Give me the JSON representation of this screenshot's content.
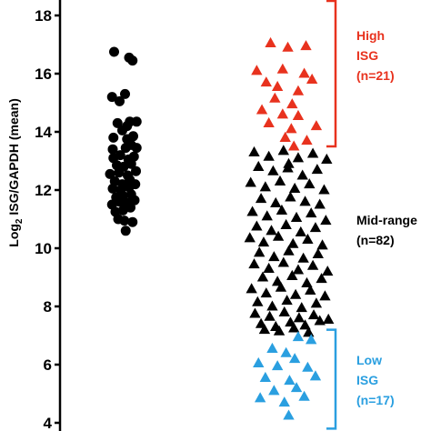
{
  "chart_data": {
    "type": "scatter",
    "ylabel_prefix": "Log",
    "ylabel_subscript": "2",
    "ylabel_suffix": " ISG/GAPDH (mean)",
    "yticks": [
      4,
      6,
      8,
      10,
      12,
      14,
      16,
      18
    ],
    "ylim": [
      3.8,
      18.5
    ],
    "grid": false,
    "series": [
      {
        "marker": "circle",
        "color": "#000000",
        "x": [
          0.14,
          0.36,
          0.41,
          0.3,
          0.11,
          0.22,
          0.37,
          0.19,
          0.33,
          0.47,
          0.26,
          0.13,
          0.33,
          0.42,
          0.12,
          0.31,
          0.39,
          0.47,
          0.13,
          0.23,
          0.35,
          0.43,
          0.18,
          0.28,
          0.39,
          0.08,
          0.21,
          0.34,
          0.46,
          0.15,
          0.26,
          0.37,
          0.12,
          0.24,
          0.36,
          0.45,
          0.17,
          0.27,
          0.39,
          0.11,
          0.22,
          0.33,
          0.44,
          0.16,
          0.27,
          0.38,
          0.2,
          0.29,
          0.41,
          0.31
        ],
        "y": [
          16.75,
          16.55,
          16.45,
          15.3,
          15.2,
          15.05,
          14.35,
          14.3,
          14.2,
          14.35,
          14.05,
          13.8,
          13.75,
          13.85,
          13.4,
          13.45,
          13.55,
          13.45,
          13.1,
          13.2,
          13.05,
          13.15,
          12.85,
          12.8,
          12.9,
          12.55,
          12.6,
          12.5,
          12.65,
          12.3,
          12.2,
          12.35,
          12.05,
          12.0,
          12.1,
          12.2,
          11.75,
          11.8,
          11.85,
          11.5,
          11.6,
          11.55,
          11.65,
          11.25,
          11.3,
          11.4,
          11.0,
          10.95,
          10.9,
          10.6
        ]
      },
      {
        "name": "High ISG (n=21)",
        "marker": "triangle",
        "color": "#e8321e",
        "x": [
          0.29,
          0.49,
          0.7,
          0.43,
          0.13,
          0.68,
          0.24,
          0.37,
          0.61,
          0.77,
          0.34,
          0.54,
          0.19,
          0.43,
          0.61,
          0.27,
          0.53,
          0.82,
          0.46,
          0.71,
          0.56
        ],
        "y": [
          17.05,
          16.9,
          16.95,
          16.15,
          16.1,
          16.0,
          15.7,
          15.55,
          15.4,
          15.8,
          15.15,
          14.95,
          14.75,
          14.6,
          14.55,
          14.3,
          14.1,
          14.2,
          13.8,
          13.7,
          13.5
        ]
      },
      {
        "name": "Mid-range (n=82)",
        "marker": "triangle",
        "color": "#000000",
        "x": [
          0.1,
          0.27,
          0.44,
          0.61,
          0.78,
          0.94,
          0.15,
          0.32,
          0.49,
          0.66,
          0.83,
          0.06,
          0.23,
          0.4,
          0.57,
          0.74,
          0.91,
          0.18,
          0.35,
          0.52,
          0.69,
          0.86,
          0.08,
          0.25,
          0.42,
          0.59,
          0.76,
          0.93,
          0.13,
          0.3,
          0.47,
          0.64,
          0.81,
          0.05,
          0.21,
          0.38,
          0.55,
          0.72,
          0.89,
          0.16,
          0.33,
          0.5,
          0.67,
          0.84,
          0.1,
          0.27,
          0.44,
          0.61,
          0.78,
          0.95,
          0.2,
          0.37,
          0.54,
          0.71,
          0.88,
          0.07,
          0.24,
          0.41,
          0.58,
          0.75,
          0.92,
          0.14,
          0.31,
          0.48,
          0.65,
          0.82,
          0.11,
          0.28,
          0.45,
          0.62,
          0.79,
          0.96,
          0.18,
          0.35,
          0.52,
          0.69,
          0.86,
          0.22,
          0.39,
          0.56,
          0.73,
          0.5
        ],
        "y": [
          13.3,
          13.15,
          13.35,
          13.1,
          13.25,
          13.05,
          12.8,
          12.65,
          12.75,
          12.5,
          12.7,
          12.25,
          12.1,
          12.3,
          12.05,
          12.2,
          12.0,
          11.7,
          11.55,
          11.75,
          11.6,
          11.5,
          11.25,
          11.1,
          11.3,
          11.05,
          11.2,
          10.95,
          10.75,
          10.6,
          10.8,
          10.55,
          10.7,
          10.35,
          10.2,
          10.4,
          10.15,
          10.3,
          10.1,
          9.85,
          9.7,
          9.9,
          9.65,
          9.8,
          9.45,
          9.3,
          9.5,
          9.25,
          9.4,
          9.2,
          9.0,
          8.85,
          9.05,
          8.8,
          8.95,
          8.6,
          8.45,
          8.65,
          8.4,
          8.55,
          8.35,
          8.15,
          8.0,
          8.2,
          7.95,
          8.1,
          7.75,
          7.65,
          7.8,
          7.6,
          7.7,
          7.55,
          7.4,
          7.3,
          7.45,
          7.35,
          7.5,
          7.2,
          7.15,
          7.25,
          7.1,
          12.9
        ]
      },
      {
        "name": "Low ISG (n=17)",
        "marker": "triangle",
        "color": "#2a9fe0",
        "x": [
          0.61,
          0.76,
          0.31,
          0.47,
          0.15,
          0.37,
          0.57,
          0.72,
          0.23,
          0.51,
          0.81,
          0.33,
          0.59,
          0.17,
          0.45,
          0.68,
          0.5
        ],
        "y": [
          6.95,
          6.85,
          6.55,
          6.4,
          6.05,
          5.95,
          6.2,
          5.9,
          5.55,
          5.45,
          5.6,
          5.1,
          5.2,
          4.85,
          4.7,
          4.9,
          4.25
        ]
      }
    ],
    "annotations": [
      {
        "line1": "High",
        "line2": "ISG",
        "line3": "(n=21)",
        "color": "#e8321e",
        "bracket": [
          13.5,
          18.5
        ]
      },
      {
        "line1": "Mid-range",
        "line2": "(n=82)",
        "color": "#000000"
      },
      {
        "line1": "Low",
        "line2": "ISG",
        "line3": "(n=17)",
        "color": "#2a9fe0",
        "bracket": [
          3.8,
          7.2
        ]
      }
    ]
  }
}
